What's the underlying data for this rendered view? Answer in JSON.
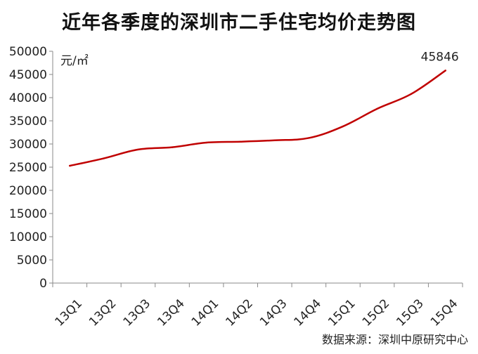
{
  "chart_data": {
    "type": "line",
    "title": "近年各季度的深圳市二手住宅均价走势图",
    "ylabel": "元/㎡",
    "source": "数据来源：深圳中原研究中心",
    "categories": [
      "13Q1",
      "13Q2",
      "13Q3",
      "13Q4",
      "14Q1",
      "14Q2",
      "14Q3",
      "14Q4",
      "15Q1",
      "15Q2",
      "15Q3",
      "15Q4"
    ],
    "series": [
      {
        "values": [
          25300,
          26900,
          28800,
          29300,
          30300,
          30500,
          30800,
          31300,
          33800,
          37600,
          40800,
          45846
        ],
        "color": "#c00000"
      }
    ],
    "ylim": [
      0,
      50000
    ],
    "yticks": [
      0,
      5000,
      10000,
      15000,
      20000,
      25000,
      30000,
      35000,
      40000,
      45000,
      50000
    ],
    "annotation": {
      "index": 11,
      "text": "45846"
    },
    "grid": false,
    "legend": "none"
  }
}
